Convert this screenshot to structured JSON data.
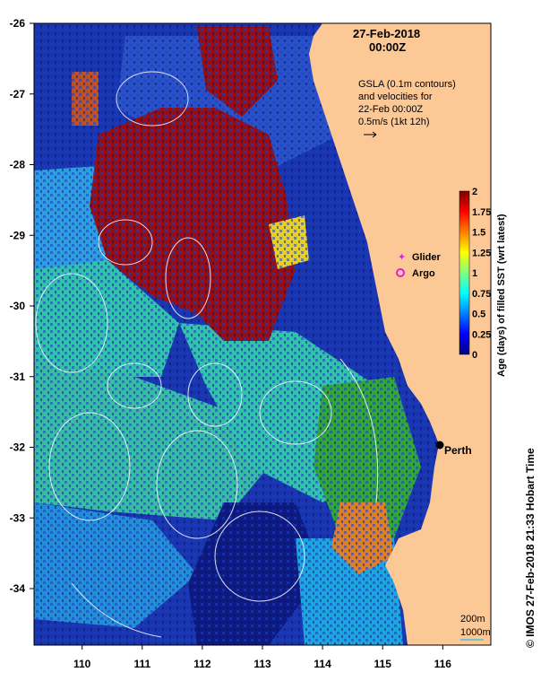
{
  "header": {
    "date": "27-Feb-2018",
    "time": "00:00Z"
  },
  "annotation": {
    "line1": "GSLA (0.1m contours)",
    "line2": "and velocities for",
    "line3": "22-Feb 00:00Z",
    "line4": "0.5m/s (1kt 12h)"
  },
  "legend": {
    "glider": "Glider",
    "argo": "Argo",
    "glider_color": "#e020e0",
    "argo_color": "#e020e0"
  },
  "city": {
    "name": "Perth",
    "lon": 115.86,
    "lat": -31.95
  },
  "colorbar": {
    "label": "Age (days) of filled SST (wrt latest)",
    "ticks": [
      "0",
      "0.25",
      "0.5",
      "0.75",
      "1",
      "1.25",
      "1.5",
      "1.75",
      "2"
    ],
    "colors": [
      "#00007f",
      "#0000ff",
      "#007fff",
      "#00ffff",
      "#7fff7f",
      "#ffff00",
      "#ff7f00",
      "#ff0000",
      "#7f0000"
    ]
  },
  "depth_legend": {
    "d1": "200m",
    "d2": "1000m"
  },
  "credit": "© IMOS 27-Feb-2018 21:33 Hobart Time",
  "axes": {
    "x_ticks": [
      "110",
      "111",
      "112",
      "113",
      "114",
      "115",
      "116"
    ],
    "y_ticks": [
      "-26",
      "-27",
      "-28",
      "-29",
      "-30",
      "-31",
      "-32",
      "-33",
      "-34"
    ],
    "lon_range": [
      109.2,
      116.8
    ],
    "lat_range": [
      -34.8,
      -26.0
    ]
  },
  "colors": {
    "land": "#fcc896",
    "deep_blue": "#142a9c",
    "teal": "#2ec4a8",
    "sky": "#20b4e8",
    "green": "#2ea832",
    "dark_red": "#9c0c0c",
    "navy": "#0a1468"
  }
}
